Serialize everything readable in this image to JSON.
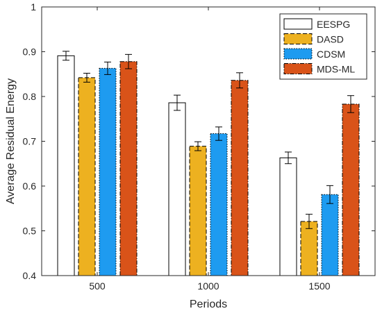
{
  "chart_data": {
    "type": "bar",
    "xlabel": "Periods",
    "ylabel": "Average Residual Energy",
    "ylim": [
      0.4,
      1.0
    ],
    "yticks": [
      "0.4",
      "0.5",
      "0.6",
      "0.7",
      "0.8",
      "0.9",
      "1"
    ],
    "categories": [
      "500",
      "1000",
      "1500"
    ],
    "grid": false,
    "error_bars": true,
    "legend_position": "top-right",
    "series": [
      {
        "name": "EESPG",
        "color": "#ffffff",
        "border": "solid",
        "values": [
          0.891,
          0.786,
          0.663
        ],
        "errors": [
          0.01,
          0.017,
          0.013
        ]
      },
      {
        "name": "DASD",
        "color": "#EDB120",
        "border": "dashed",
        "values": [
          0.842,
          0.689,
          0.521
        ],
        "errors": [
          0.01,
          0.01,
          0.016
        ]
      },
      {
        "name": "CDSM",
        "color": "#1E9BF0",
        "border": "dotted",
        "values": [
          0.863,
          0.717,
          0.581
        ],
        "errors": [
          0.014,
          0.015,
          0.02
        ]
      },
      {
        "name": "MDS-ML",
        "color": "#D95319",
        "border": "dash-dot",
        "values": [
          0.878,
          0.836,
          0.783
        ],
        "errors": [
          0.016,
          0.017,
          0.019
        ]
      }
    ]
  }
}
